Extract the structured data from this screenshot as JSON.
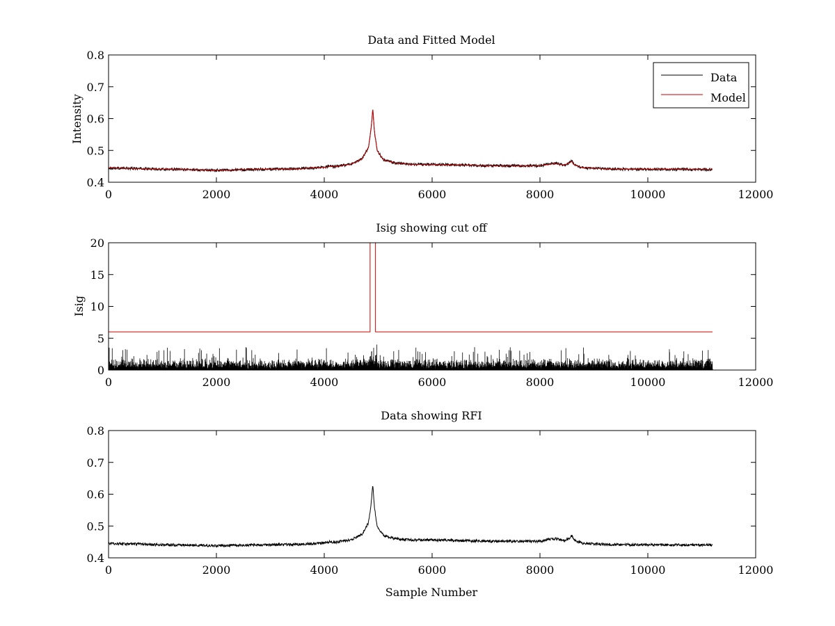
{
  "figure": {
    "background": "#ffffff",
    "line_color": "#000000",
    "model_color": "#cc0000"
  },
  "chart_data": [
    {
      "type": "line",
      "title": "Data and Fitted Model",
      "xlabel": "",
      "ylabel": "Intensity",
      "xlim": [
        0,
        12000
      ],
      "ylim": [
        0.4,
        0.8
      ],
      "xticks": [
        0,
        2000,
        4000,
        6000,
        8000,
        10000,
        12000
      ],
      "yticks": [
        0.4,
        0.5,
        0.6,
        0.7,
        0.8
      ],
      "xtick_labels": [
        "0",
        "2000",
        "4000",
        "6000",
        "8000",
        "10000",
        "12000"
      ],
      "ytick_labels": [
        "0.4",
        "0.5",
        "0.6",
        "0.7",
        "0.8"
      ],
      "legend_position": "top-right",
      "n_samples": 11200,
      "series": [
        {
          "name": "Data",
          "color": "#000000",
          "noise_amplitude": 0.004,
          "profile": {
            "x": [
              0,
              1000,
              2000,
              2600,
              3000,
              3600,
              4000,
              4100,
              4200,
              4500,
              4700,
              4820,
              4870,
              4900,
              4930,
              4980,
              5100,
              5300,
              5600,
              6000,
              7000,
              8000,
              8200,
              8300,
              8450,
              8550,
              8590,
              8630,
              8800,
              9500,
              10000,
              11200
            ],
            "y": [
              0.445,
              0.441,
              0.438,
              0.44,
              0.441,
              0.443,
              0.447,
              0.451,
              0.449,
              0.457,
              0.473,
              0.51,
              0.57,
              0.63,
              0.56,
              0.5,
              0.47,
              0.461,
              0.456,
              0.456,
              0.452,
              0.452,
              0.458,
              0.46,
              0.454,
              0.462,
              0.47,
              0.455,
              0.445,
              0.441,
              0.441,
              0.44
            ]
          }
        },
        {
          "name": "Model",
          "color": "#cc0000",
          "noise_amplitude": 0.0008,
          "profile": {
            "x": [
              0,
              1000,
              2000,
              2600,
              3000,
              3600,
              4000,
              4100,
              4200,
              4500,
              4700,
              4820,
              4870,
              4900,
              4930,
              4980,
              5100,
              5300,
              5600,
              6000,
              7000,
              8000,
              8200,
              8300,
              8450,
              8550,
              8590,
              8630,
              8800,
              9500,
              10000,
              11200
            ],
            "y": [
              0.445,
              0.441,
              0.438,
              0.44,
              0.441,
              0.443,
              0.447,
              0.45,
              0.449,
              0.457,
              0.473,
              0.51,
              0.57,
              0.632,
              0.56,
              0.5,
              0.47,
              0.461,
              0.456,
              0.456,
              0.452,
              0.452,
              0.457,
              0.458,
              0.454,
              0.461,
              0.466,
              0.455,
              0.445,
              0.441,
              0.441,
              0.44
            ]
          }
        }
      ]
    },
    {
      "type": "line",
      "title": "Isig showing cut off",
      "xlabel": "",
      "ylabel": "Isig",
      "xlim": [
        0,
        12000
      ],
      "ylim": [
        0,
        20
      ],
      "xticks": [
        0,
        2000,
        4000,
        6000,
        8000,
        10000,
        12000
      ],
      "yticks": [
        0,
        5,
        10,
        15,
        20
      ],
      "xtick_labels": [
        "0",
        "2000",
        "4000",
        "6000",
        "8000",
        "10000",
        "12000"
      ],
      "ytick_labels": [
        "0",
        "5",
        "10",
        "15",
        "20"
      ],
      "n_samples": 11200,
      "series": [
        {
          "name": "Isig",
          "color": "#000000",
          "kind": "noise",
          "typical_max": 2.0,
          "max": 4.0
        },
        {
          "name": "Cut off",
          "color": "#cc0000",
          "kind": "step",
          "x": [
            0,
            4850,
            4850,
            4950,
            4950,
            11200
          ],
          "y": [
            6,
            6,
            20,
            20,
            6,
            6
          ]
        }
      ]
    },
    {
      "type": "line",
      "title": "Data showing RFI",
      "xlabel": "Sample Number",
      "ylabel": "",
      "xlim": [
        0,
        12000
      ],
      "ylim": [
        0.4,
        0.8
      ],
      "xticks": [
        0,
        2000,
        4000,
        6000,
        8000,
        10000,
        12000
      ],
      "yticks": [
        0.4,
        0.5,
        0.6,
        0.7,
        0.8
      ],
      "xtick_labels": [
        "0",
        "2000",
        "4000",
        "6000",
        "8000",
        "10000",
        "12000"
      ],
      "ytick_labels": [
        "0.4",
        "0.5",
        "0.6",
        "0.7",
        "0.8"
      ],
      "n_samples": 11200,
      "series": [
        {
          "name": "Data",
          "color": "#000000",
          "noise_amplitude": 0.004,
          "profile": {
            "x": [
              0,
              1000,
              2000,
              2600,
              3000,
              3600,
              4000,
              4100,
              4200,
              4500,
              4700,
              4820,
              4870,
              4900,
              4930,
              4980,
              5100,
              5300,
              5600,
              6000,
              7000,
              8000,
              8200,
              8300,
              8450,
              8550,
              8590,
              8630,
              8800,
              9500,
              10000,
              11200
            ],
            "y": [
              0.445,
              0.441,
              0.438,
              0.44,
              0.441,
              0.443,
              0.447,
              0.451,
              0.449,
              0.457,
              0.473,
              0.51,
              0.57,
              0.63,
              0.56,
              0.5,
              0.47,
              0.461,
              0.456,
              0.456,
              0.452,
              0.452,
              0.458,
              0.46,
              0.454,
              0.462,
              0.47,
              0.455,
              0.445,
              0.441,
              0.441,
              0.44
            ]
          }
        }
      ]
    }
  ]
}
